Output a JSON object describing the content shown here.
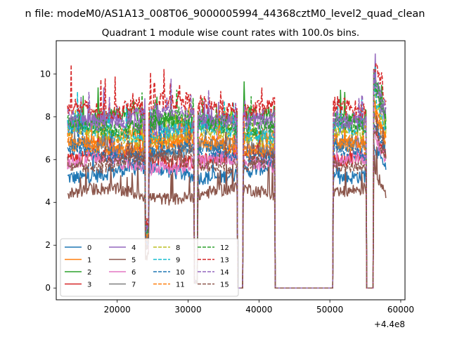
{
  "chart_data": {
    "type": "line",
    "suptitle": "n file: modeM0/AS1A13_008T06_9000005994_44368cztM0_level2_quad_clean",
    "title": "Quadrant 1 module wise count rates with 100.0s bins.",
    "xlabel": "",
    "ylabel": "",
    "x_offset_label": "+4.4e8",
    "xlim": [
      11400,
      60600
    ],
    "ylim": [
      -0.55,
      11.55
    ],
    "xticks": [
      {
        "value": 20000,
        "label": "20000"
      },
      {
        "value": 30000,
        "label": "30000"
      },
      {
        "value": 40000,
        "label": "40000"
      },
      {
        "value": 50000,
        "label": "50000"
      },
      {
        "value": 60000,
        "label": "60000"
      }
    ],
    "yticks": [
      {
        "value": 0,
        "label": "0"
      },
      {
        "value": 2,
        "label": "2"
      },
      {
        "value": 4,
        "label": "4"
      },
      {
        "value": 6,
        "label": "6"
      },
      {
        "value": 8,
        "label": "8"
      },
      {
        "value": 10,
        "label": "10"
      }
    ],
    "grid": false,
    "legend_position": "lower-left",
    "legend_columns": 4,
    "segments": [
      {
        "start": 13000,
        "end": 24000,
        "shape": "active"
      },
      {
        "start": 24000,
        "end": 24500,
        "shape": "dip_deep"
      },
      {
        "start": 24500,
        "end": 30900,
        "shape": "active"
      },
      {
        "start": 30900,
        "end": 31400,
        "shape": "dip_full"
      },
      {
        "start": 31400,
        "end": 37000,
        "shape": "active"
      },
      {
        "start": 37000,
        "end": 37800,
        "shape": "gap"
      },
      {
        "start": 37800,
        "end": 42300,
        "shape": "active"
      },
      {
        "start": 42300,
        "end": 50500,
        "shape": "gap"
      },
      {
        "start": 50500,
        "end": 55200,
        "shape": "active"
      },
      {
        "start": 55200,
        "end": 56200,
        "shape": "gap"
      },
      {
        "start": 56200,
        "end": 58000,
        "shape": "active_bright"
      }
    ],
    "series": [
      {
        "name": "0",
        "color": "#1f77b4",
        "dash": "solid",
        "level": 5.4,
        "noise": 0.35
      },
      {
        "name": "1",
        "color": "#ff7f0e",
        "dash": "solid",
        "level": 6.9,
        "noise": 0.35
      },
      {
        "name": "2",
        "color": "#2ca02c",
        "dash": "solid",
        "level": 7.9,
        "noise": 0.4
      },
      {
        "name": "3",
        "color": "#d62728",
        "dash": "solid",
        "level": 6.1,
        "noise": 0.35
      },
      {
        "name": "4",
        "color": "#9467bd",
        "dash": "solid",
        "level": 7.6,
        "noise": 0.4
      },
      {
        "name": "5",
        "color": "#8c564b",
        "dash": "solid",
        "level": 4.4,
        "noise": 0.3
      },
      {
        "name": "6",
        "color": "#e377c2",
        "dash": "solid",
        "level": 5.8,
        "noise": 0.35
      },
      {
        "name": "7",
        "color": "#7f7f7f",
        "dash": "solid",
        "level": 6.5,
        "noise": 0.35
      },
      {
        "name": "8",
        "color": "#bcbd22",
        "dash": "dashed",
        "level": 7.1,
        "noise": 0.35
      },
      {
        "name": "9",
        "color": "#17becf",
        "dash": "dashed",
        "level": 7.3,
        "noise": 0.35
      },
      {
        "name": "10",
        "color": "#1f77b4",
        "dash": "dashed",
        "level": 6.3,
        "noise": 0.35
      },
      {
        "name": "11",
        "color": "#ff7f0e",
        "dash": "dashed",
        "level": 6.7,
        "noise": 0.35
      },
      {
        "name": "12",
        "color": "#2ca02c",
        "dash": "dashed",
        "level": 7.7,
        "noise": 0.4
      },
      {
        "name": "13",
        "color": "#d62728",
        "dash": "dashed",
        "level": 8.5,
        "noise": 0.45
      },
      {
        "name": "14",
        "color": "#9467bd",
        "dash": "dashed",
        "level": 8.0,
        "noise": 0.4
      },
      {
        "name": "15",
        "color": "#8c564b",
        "dash": "dashed",
        "level": 5.9,
        "noise": 0.35
      }
    ]
  }
}
